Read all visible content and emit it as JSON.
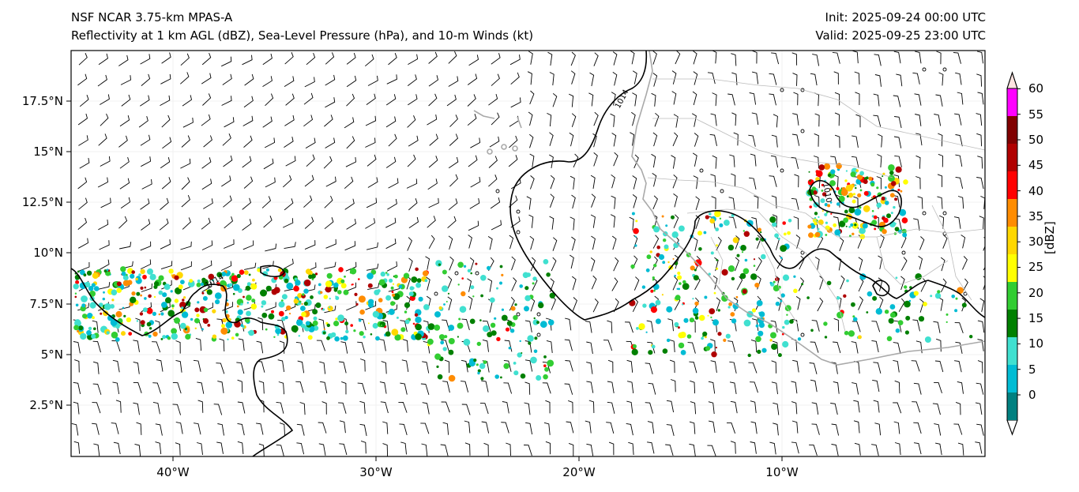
{
  "header": {
    "left_line1": "NSF NCAR 3.75-km MPAS-A",
    "left_line2": "Reflectivity at 1 km AGL (dBZ), Sea-Level Pressure (hPa), and 10-m Winds (kt)",
    "right_line1": "Init: 2025-09-24 00:00 UTC",
    "right_line2": "Valid: 2025-09-25 23:00 UTC"
  },
  "map": {
    "lat_labels": [
      "17.5°N",
      "15°N",
      "12.5°N",
      "10°N",
      "7.5°N",
      "5°N",
      "2.5°N"
    ],
    "lon_labels": [
      "40°W",
      "30°W",
      "20°W",
      "10°W"
    ],
    "isobar_labels": [
      "1014",
      "1014",
      "1010"
    ],
    "isobar_color": "#000000",
    "coastline_color": "#a9a9a9",
    "border_color": "#b3b3b3"
  },
  "colorbar": {
    "title": "[dBZ]",
    "tick_labels": [
      "0",
      "5",
      "10",
      "15",
      "20",
      "25",
      "30",
      "35",
      "40",
      "45",
      "50",
      "55",
      "60"
    ],
    "colors": [
      "#ffffff",
      "#008080",
      "#00bcd4",
      "#40e0d0",
      "#008000",
      "#32cd32",
      "#ffff00",
      "#ffd700",
      "#ff8c00",
      "#ff0000",
      "#b00000",
      "#800000",
      "#ff00ff",
      "#ffe4e1"
    ]
  }
}
